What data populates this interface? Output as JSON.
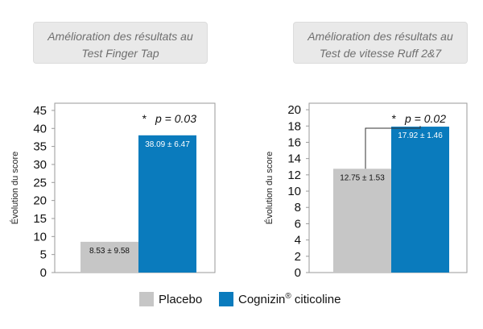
{
  "legend": {
    "placebo": "Placebo",
    "cognizin_name": "Cognizin",
    "cognizin_reg": "®",
    "cognizin_rest": " citicoline",
    "placebo_color": "#c6c6c6",
    "cognizin_color": "#0a7bbd"
  },
  "chart_data": [
    {
      "type": "bar",
      "title_line1": "Amélioration des résultats au",
      "title_line2": "Test Finger Tap",
      "ylabel": "Évolution du score",
      "ylim": [
        0,
        47
      ],
      "yticks": [
        "0",
        "5",
        "10",
        "15",
        "20",
        "25",
        "30",
        "35",
        "40",
        "45"
      ],
      "categories": [
        "Placebo",
        "Cognizin® citicoline"
      ],
      "values": [
        8.53,
        38.09
      ],
      "value_labels": [
        "8.53 ± 9.58",
        "38.09 ± 6.47"
      ],
      "significance": {
        "star": "*",
        "text": "p = 0.03"
      }
    },
    {
      "type": "bar",
      "title_line1": "Amélioration des résultats au",
      "title_line2": "Test de vitesse Ruff 2&7",
      "ylabel": "Évolution du score",
      "ylim": [
        0,
        20.8
      ],
      "yticks": [
        "0",
        "2",
        "4",
        "6",
        "8",
        "10",
        "12",
        "14",
        "16",
        "18",
        "20"
      ],
      "categories": [
        "Placebo",
        "Cognizin® citicoline"
      ],
      "values": [
        12.75,
        17.92
      ],
      "value_labels": [
        "12.75 ± 1.53",
        "17.92 ± 1.46"
      ],
      "significance": {
        "star": "*",
        "text": "p = 0.02"
      }
    }
  ]
}
